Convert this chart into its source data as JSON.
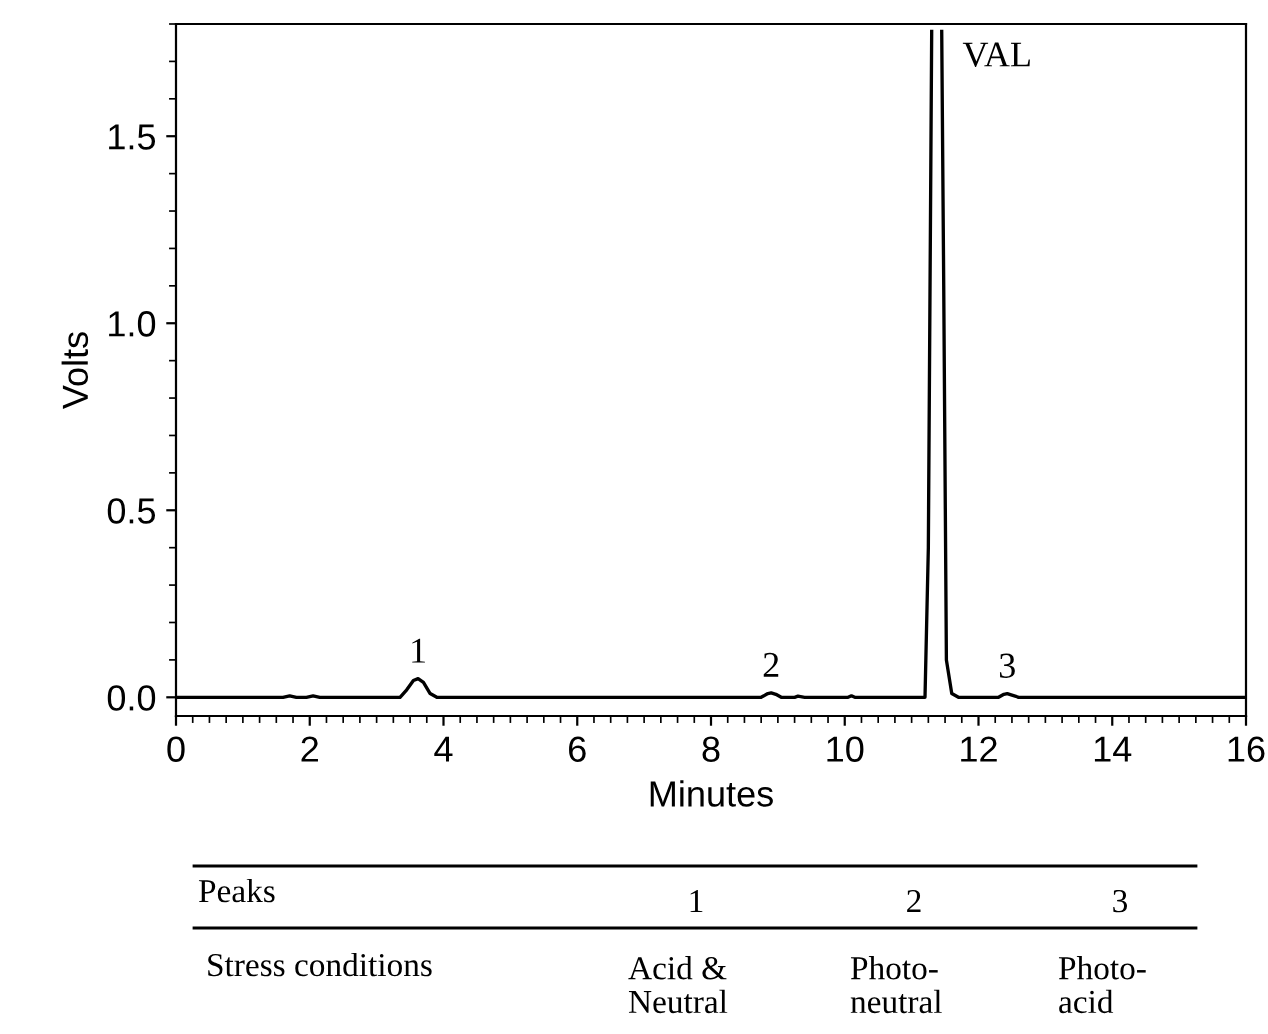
{
  "chart_data": {
    "type": "line",
    "xlabel": "Minutes",
    "ylabel": "Volts",
    "series": [
      {
        "color": "#000000",
        "x": [
          0,
          1.6,
          1.7,
          1.8,
          1.95,
          2.05,
          2.15,
          3.35,
          3.45,
          3.55,
          3.62,
          3.7,
          3.8,
          3.9,
          8.75,
          8.85,
          8.9,
          8.97,
          9.05,
          9.25,
          9.3,
          9.4,
          10.05,
          10.1,
          10.15,
          11.2,
          11.25,
          11.3,
          11.38,
          11.45,
          11.48,
          11.52,
          11.6,
          11.7,
          12.3,
          12.38,
          12.43,
          12.5,
          12.6,
          16
        ],
        "values": [
          0,
          0,
          0.004,
          0,
          0,
          0.004,
          0,
          0,
          0.02,
          0.045,
          0.05,
          0.04,
          0.01,
          0,
          0,
          0.01,
          0.012,
          0.008,
          0,
          0,
          0.003,
          0,
          0,
          0.004,
          0,
          0,
          0.4,
          1.78,
          null,
          1.78,
          1.1,
          0.1,
          0.01,
          0,
          0,
          0.008,
          0.01,
          0.006,
          0,
          0
        ]
      }
    ],
    "xlim": [
      0,
      16
    ],
    "ylim": [
      -0.05,
      1.8
    ],
    "xticks": [
      0,
      2,
      4,
      6,
      8,
      10,
      12,
      14,
      16
    ],
    "yticks": [
      {
        "value": 0,
        "label": "0.0"
      },
      {
        "value": 0.5,
        "label": "0.5"
      },
      {
        "value": 1,
        "label": "1.0"
      },
      {
        "value": 1.5,
        "label": "1.5"
      }
    ],
    "grid": false,
    "legend": false,
    "marker": "none",
    "line_style": "solid",
    "annotations": [
      {
        "text": "1",
        "x": 3.62,
        "y": 0.05
      },
      {
        "text": "2",
        "x": 8.9,
        "y": 0.012
      },
      {
        "text": "3",
        "x": 12.43,
        "y": 0.01
      },
      "VAL",
      "Peaks",
      "1",
      "2",
      "3",
      "Stress conditions",
      "Acid &\nNeutral",
      "Photo-\nneutral",
      "Photo-\nacid"
    ]
  }
}
